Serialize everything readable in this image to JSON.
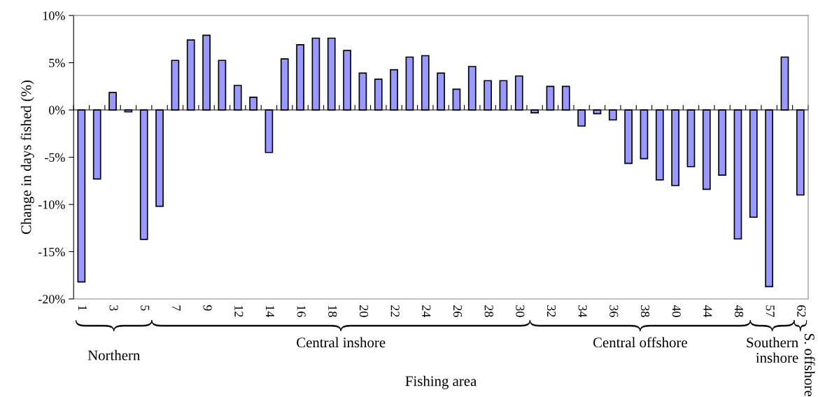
{
  "chart_data": {
    "type": "bar",
    "xlabel": "Fishing area",
    "ylabel": "Change in days fished (%)",
    "categories": [
      "1",
      null,
      "3",
      null,
      "5",
      null,
      "7",
      null,
      "9",
      null,
      "12",
      null,
      "14",
      null,
      "16",
      null,
      "18",
      null,
      "20",
      null,
      "22",
      null,
      "24",
      null,
      "26",
      null,
      "28",
      null,
      "30",
      null,
      "32",
      null,
      "34",
      null,
      "36",
      null,
      "38",
      null,
      "40",
      null,
      "44",
      null,
      "48",
      null,
      "57",
      null,
      "62"
    ],
    "values": [
      -18.2,
      -7.3,
      1.85,
      -0.2,
      -13.7,
      -10.2,
      5.25,
      7.4,
      7.9,
      5.25,
      2.6,
      1.35,
      -4.5,
      5.4,
      6.9,
      7.6,
      7.6,
      6.3,
      3.9,
      3.25,
      4.25,
      5.6,
      5.75,
      3.9,
      2.2,
      4.6,
      3.1,
      3.1,
      3.6,
      -0.3,
      2.5,
      2.5,
      -1.7,
      -0.4,
      -1.05,
      -5.65,
      -5.15,
      -7.4,
      -8.0,
      -6.0,
      -8.4,
      -6.9,
      -13.65,
      -11.35,
      -18.7,
      5.6,
      -9.0
    ],
    "color": "#9999ff",
    "ylim": [
      -20,
      10
    ],
    "yticks": [
      {
        "value": -20,
        "label": "-20%"
      },
      {
        "value": -15,
        "label": "-15%"
      },
      {
        "value": -10,
        "label": "-10%"
      },
      {
        "value": -5,
        "label": "-5%"
      },
      {
        "value": 0,
        "label": "0%"
      },
      {
        "value": 5,
        "label": "5%"
      },
      {
        "value": 10,
        "label": "10%"
      }
    ],
    "legend": false,
    "annotations": [
      "Northern",
      "Central inshore",
      "Central offshore",
      "Southern\ninshore",
      "S. offshore"
    ]
  }
}
